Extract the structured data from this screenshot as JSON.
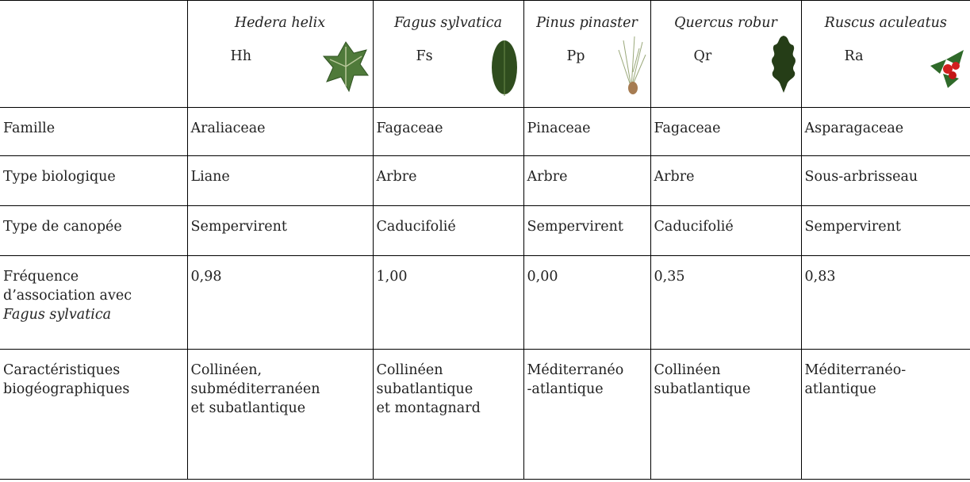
{
  "table": {
    "header": {
      "species": [
        {
          "name": "Hedera helix",
          "code": "Hh"
        },
        {
          "name": "Fagus sylvatica",
          "code": "Fs"
        },
        {
          "name": "Pinus pinaster",
          "code": "Pp"
        },
        {
          "name": "Quercus robur",
          "code": "Qr"
        },
        {
          "name": "Ruscus aculeatus",
          "code": "Ra"
        }
      ]
    },
    "rows": [
      {
        "label": [
          "Famille"
        ],
        "cells": [
          [
            "Araliaceae"
          ],
          [
            "Fagaceae"
          ],
          [
            "Pinaceae"
          ],
          [
            "Fagaceae"
          ],
          [
            "Asparagaceae"
          ]
        ]
      },
      {
        "label": [
          "Type biologique"
        ],
        "cells": [
          [
            "Liane"
          ],
          [
            "Arbre"
          ],
          [
            "Arbre"
          ],
          [
            "Arbre"
          ],
          [
            "Sous-arbrisseau"
          ]
        ]
      },
      {
        "label": [
          "Type de canopée"
        ],
        "cells": [
          [
            "Sempervirent"
          ],
          [
            "Caducifolié"
          ],
          [
            "Sempervirent"
          ],
          [
            "Caducifolié"
          ],
          [
            "Sempervirent"
          ]
        ]
      },
      {
        "label": [
          "Fréquence",
          "d’association avec",
          "Fagus sylvatica"
        ],
        "cells": [
          [
            "0,98"
          ],
          [
            "1,00"
          ],
          [
            "0,00"
          ],
          [
            "0,35"
          ],
          [
            "0,83"
          ]
        ]
      },
      {
        "label": [
          "Caractéristiques",
          "biogéographiques"
        ],
        "cells": [
          [
            "Collinéen,",
            "subméditerranéen",
            "et subatlantique"
          ],
          [
            "Collinéen",
            "subatlantique",
            "et montagnard"
          ],
          [
            "Méditerranéo",
            "-atlantique"
          ],
          [
            "Collinéen",
            "subatlantique"
          ],
          [
            "Méditerranéo-",
            "atlantique"
          ]
        ]
      }
    ]
  }
}
